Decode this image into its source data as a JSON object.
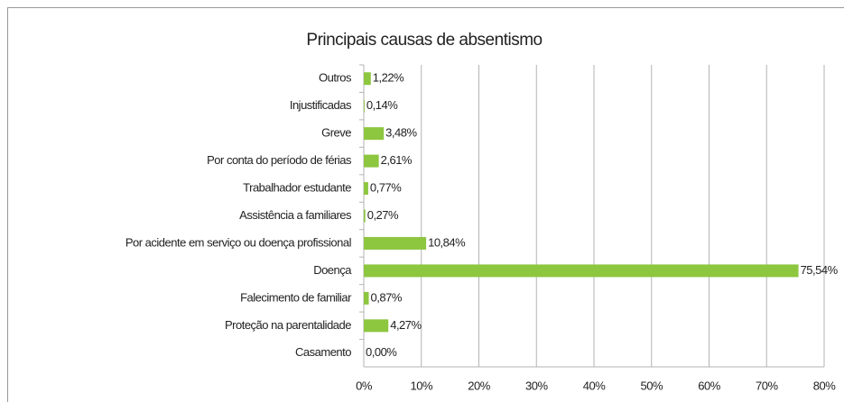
{
  "chart_data": {
    "type": "barh",
    "title": "Principais causas de absentismo",
    "categories": [
      "Outros",
      "Injustificadas",
      "Greve",
      "Por conta do período de férias",
      "Trabalhador estudante",
      "Assistência a familiares",
      "Por acidente em serviço ou doença profissional",
      "Doença",
      "Falecimento de familiar",
      "Proteção na parentalidade",
      "Casamento"
    ],
    "values": [
      1.22,
      0.14,
      3.48,
      2.61,
      0.77,
      0.27,
      10.84,
      75.54,
      0.87,
      4.27,
      0.0
    ],
    "value_labels": [
      "1,22%",
      "0,14%",
      "3,48%",
      "2,61%",
      "0,77%",
      "0,27%",
      "10,84%",
      "75,54%",
      "0,87%",
      "4,27%",
      "0,00%"
    ],
    "color": "#8dc63f",
    "xlim": [
      0,
      80
    ],
    "xticks": [
      {
        "value": 0,
        "label": "0%"
      },
      {
        "value": 10,
        "label": "10%"
      },
      {
        "value": 20,
        "label": "20%"
      },
      {
        "value": 30,
        "label": "30%"
      },
      {
        "value": 40,
        "label": "40%"
      },
      {
        "value": 50,
        "label": "50%"
      },
      {
        "value": 60,
        "label": "60%"
      },
      {
        "value": 70,
        "label": "70%"
      },
      {
        "value": 80,
        "label": "80%"
      }
    ],
    "grid": true
  }
}
